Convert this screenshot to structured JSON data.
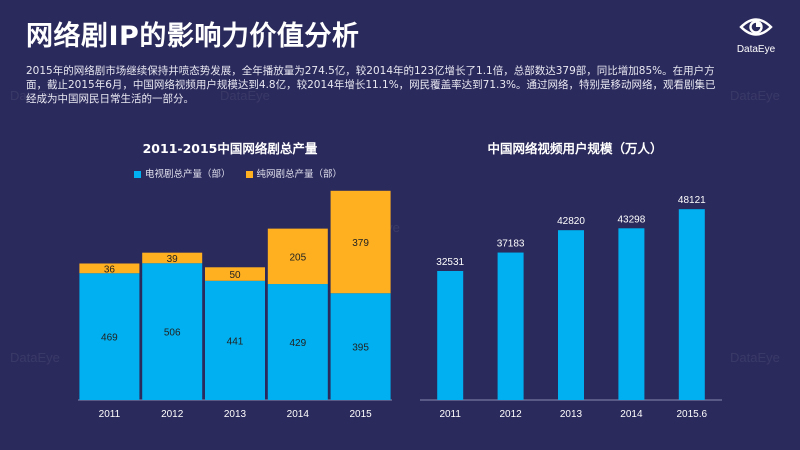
{
  "page": {
    "title": "网络剧IP的影响力价值分析",
    "description": "2015年的网络剧市场继续保持井喷态势发展，全年播放量为274.5亿，较2014年的123亿增长了1.1倍，总部数达379部，同比增加85%。在用户方面，截止2015年6月，中国网络视频用户规模达到4.8亿，较2014年增长11.1%，网民覆盖率达到71.3%。通过网络，特别是移动网络，观看剧集已经成为中国网民日常生活的一部分。",
    "logo_text": "DataEye",
    "watermark_text": "DataEye"
  },
  "colors": {
    "background": "#2b2a5c",
    "blue": "#00b0f0",
    "orange": "#ffb020",
    "axis": "#8a8ab0"
  },
  "chart_data": [
    {
      "type": "bar",
      "stacked": true,
      "title": "2011-2015中国网络剧总产量",
      "categories": [
        "2011",
        "2012",
        "2013",
        "2014",
        "2015"
      ],
      "series": [
        {
          "name": "电视剧总产量（部）",
          "values": [
            469,
            506,
            441,
            429,
            395
          ],
          "color": "#00b0f0"
        },
        {
          "name": "纯网剧总产量（部）",
          "values": [
            36,
            39,
            50,
            205,
            379
          ],
          "color": "#ffb020"
        }
      ],
      "ylim": [
        0,
        800
      ],
      "xlabel": "",
      "ylabel": "",
      "legend": "top"
    },
    {
      "type": "bar",
      "title": "中国网络视频用户规模（万人）",
      "categories": [
        "2011",
        "2012",
        "2013",
        "2014",
        "2015.6"
      ],
      "values": [
        32531,
        37183,
        42820,
        43298,
        48121
      ],
      "color": "#00b0f0",
      "ylim": [
        0,
        58000
      ],
      "xlabel": "",
      "ylabel": ""
    }
  ]
}
